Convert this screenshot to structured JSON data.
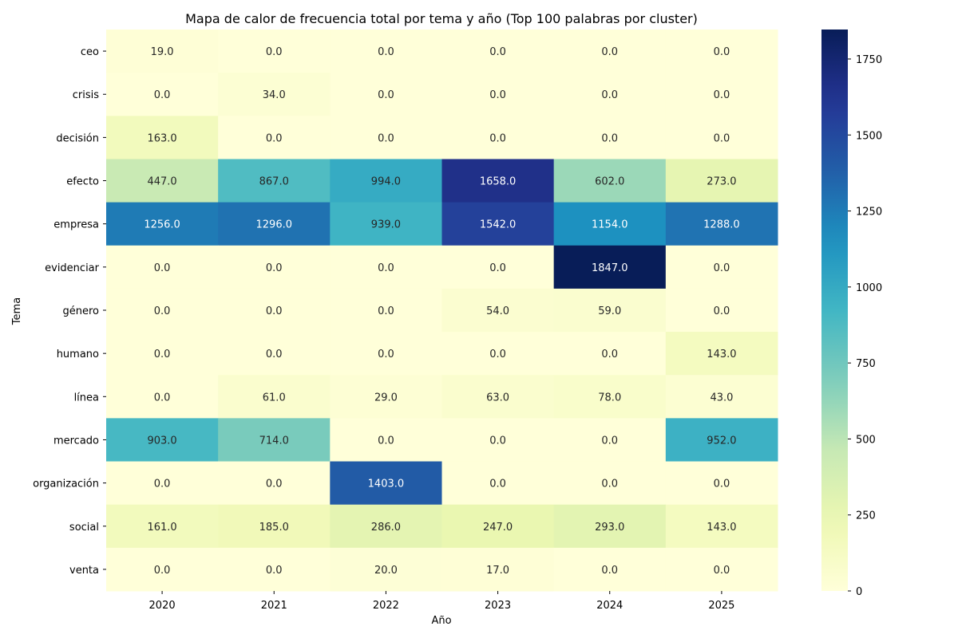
{
  "chart_data": {
    "type": "heatmap",
    "title": "Mapa de calor de frecuencia total por tema y año (Top 100 palabras por cluster)",
    "xlabel": "Año",
    "ylabel": "Tema",
    "x_categories": [
      "2020",
      "2021",
      "2022",
      "2023",
      "2024",
      "2025"
    ],
    "y_categories": [
      "ceo",
      "crisis",
      "decisión",
      "efecto",
      "empresa",
      "evidenciar",
      "género",
      "humano",
      "línea",
      "mercado",
      "organización",
      "social",
      "venta"
    ],
    "values": [
      [
        19.0,
        0.0,
        0.0,
        0.0,
        0.0,
        0.0
      ],
      [
        0.0,
        34.0,
        0.0,
        0.0,
        0.0,
        0.0
      ],
      [
        163.0,
        0.0,
        0.0,
        0.0,
        0.0,
        0.0
      ],
      [
        447.0,
        867.0,
        994.0,
        1658.0,
        602.0,
        273.0
      ],
      [
        1256.0,
        1296.0,
        939.0,
        1542.0,
        1154.0,
        1288.0
      ],
      [
        0.0,
        0.0,
        0.0,
        0.0,
        1847.0,
        0.0
      ],
      [
        0.0,
        0.0,
        0.0,
        54.0,
        59.0,
        0.0
      ],
      [
        0.0,
        0.0,
        0.0,
        0.0,
        0.0,
        143.0
      ],
      [
        0.0,
        61.0,
        29.0,
        63.0,
        78.0,
        43.0
      ],
      [
        903.0,
        714.0,
        0.0,
        0.0,
        0.0,
        952.0
      ],
      [
        0.0,
        0.0,
        1403.0,
        0.0,
        0.0,
        0.0
      ],
      [
        161.0,
        185.0,
        286.0,
        247.0,
        293.0,
        143.0
      ],
      [
        0.0,
        0.0,
        20.0,
        17.0,
        0.0,
        0.0
      ]
    ],
    "value_format": "0.0",
    "colormap": "YlGnBu",
    "colorbar": {
      "range": [
        0,
        1847
      ],
      "ticks": [
        0,
        250,
        500,
        750,
        1000,
        1250,
        1500,
        1750
      ]
    },
    "grid": false,
    "legend": "colorbar-right"
  }
}
